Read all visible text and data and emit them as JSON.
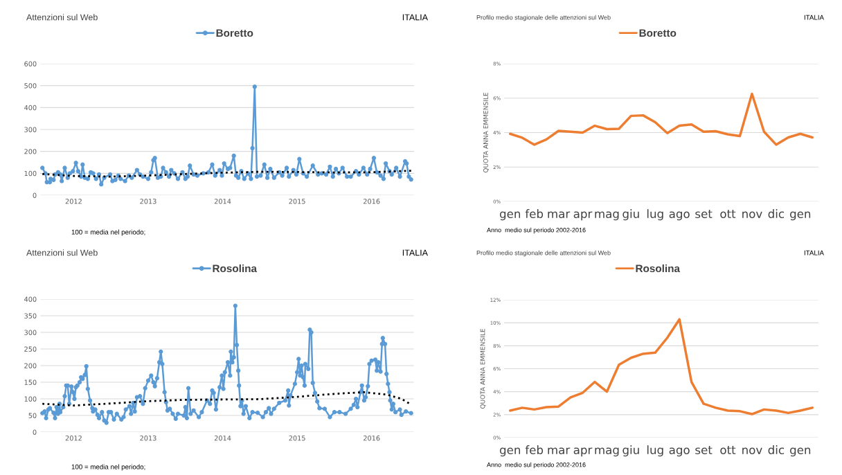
{
  "chart_data": [
    {
      "type": "line",
      "title": "Attenzioni sul Web",
      "annotations": [
        "ITALIA",
        "100 = media nel periodo;"
      ],
      "xlim": [
        2011.55,
        2016.57
      ],
      "xticks": [
        2012,
        2013,
        2014,
        2015,
        2016
      ],
      "ylim": [
        0,
        600
      ],
      "yticks": [
        0,
        100,
        200,
        300,
        400,
        500,
        600
      ],
      "grid": "y",
      "legend": "top",
      "series": [
        {
          "name": "Boretto",
          "color": "#5b9bd5",
          "marker": "circle",
          "line_style": "solid",
          "x": [
            2011.58,
            2011.62,
            2011.64,
            2011.68,
            2011.69,
            2011.73,
            2011.75,
            2011.79,
            2011.82,
            2011.84,
            2011.88,
            2011.92,
            2011.95,
            2011.99,
            2012.03,
            2012.06,
            2012.1,
            2012.12,
            2012.15,
            2012.19,
            2012.23,
            2012.26,
            2012.3,
            2012.34,
            2012.37,
            2012.41,
            2012.49,
            2012.52,
            2012.56,
            2012.6,
            2012.63,
            2012.69,
            2012.74,
            2012.78,
            2012.85,
            2012.89,
            2012.93,
            2013.0,
            2013.04,
            2013.07,
            2013.09,
            2013.13,
            2013.17,
            2013.2,
            2013.24,
            2013.28,
            2013.31,
            2013.35,
            2013.4,
            2013.46,
            2013.5,
            2013.53,
            2013.56,
            2013.61,
            2013.66,
            2013.74,
            2013.81,
            2013.86,
            2013.9,
            2013.96,
            2013.99,
            2014.02,
            2014.07,
            2014.1,
            2014.15,
            2014.18,
            2014.21,
            2014.25,
            2014.29,
            2014.34,
            2014.38,
            2014.4,
            2014.43,
            2014.46,
            2014.51,
            2014.56,
            2014.6,
            2014.64,
            2014.69,
            2014.76,
            2014.8,
            2014.86,
            2014.89,
            2014.95,
            2014.99,
            2015.03,
            2015.08,
            2015.13,
            2015.21,
            2015.28,
            2015.33,
            2015.39,
            2015.44,
            2015.48,
            2015.52,
            2015.56,
            2015.61,
            2015.67,
            2015.72,
            2015.79,
            2015.83,
            2015.89,
            2015.94,
            2015.98,
            2016.03,
            2016.07,
            2016.12,
            2016.16,
            2016.19,
            2016.24,
            2016.27,
            2016.33,
            2016.38,
            2016.45,
            2016.47,
            2016.5,
            2016.53
          ],
          "values": [
            125,
            100,
            60,
            60,
            75,
            70,
            95,
            105,
            95,
            65,
            125,
            80,
            100,
            110,
            148,
            110,
            85,
            140,
            80,
            75,
            105,
            100,
            75,
            95,
            50,
            80,
            95,
            65,
            70,
            90,
            75,
            65,
            90,
            80,
            115,
            95,
            85,
            75,
            105,
            160,
            170,
            80,
            85,
            125,
            105,
            85,
            115,
            100,
            75,
            105,
            75,
            85,
            135,
            95,
            90,
            100,
            105,
            140,
            90,
            115,
            90,
            145,
            120,
            125,
            180,
            90,
            80,
            110,
            75,
            100,
            75,
            215,
            495,
            85,
            90,
            140,
            80,
            120,
            80,
            105,
            90,
            125,
            85,
            115,
            95,
            165,
            100,
            85,
            135,
            95,
            100,
            95,
            130,
            85,
            120,
            100,
            125,
            85,
            85,
            110,
            95,
            125,
            95,
            120,
            170,
            105,
            90,
            75,
            145,
            110,
            95,
            125,
            85,
            155,
            145,
            85,
            72
          ]
        },
        {
          "type": "line",
          "color": "#000000",
          "marker": "none",
          "line_style": "dotted",
          "x": [
            2011.58,
            2012.0,
            2012.5,
            2013.0,
            2013.5,
            2014.0,
            2014.5,
            2015.0,
            2015.5,
            2016.0,
            2016.53
          ],
          "values": [
            97,
            88,
            85,
            90,
            97,
            103,
            107,
            106,
            104,
            105,
            112
          ]
        }
      ]
    },
    {
      "type": "line",
      "title": "Profilo medio stagionale delle attenzioni sul Web",
      "ylabel": "QUOTA ANNA EMMENSILE",
      "annotations": [
        "ITALIA",
        "Anno  medio sul periodo 2002-2016"
      ],
      "ylim": [
        0,
        8
      ],
      "yticks": [
        {
          "value": 0,
          "label": "0%"
        },
        {
          "value": 2,
          "label": "2%"
        },
        {
          "value": 4,
          "label": "4%"
        },
        {
          "value": 6,
          "label": "6%"
        },
        {
          "value": 8,
          "label": "8%"
        }
      ],
      "grid": "y",
      "legend": "top",
      "categories": [
        "gen",
        null,
        "feb",
        null,
        "mar",
        null,
        "apr",
        null,
        "mag",
        null,
        "giu",
        null,
        "lug",
        null,
        "ago",
        null,
        "set",
        null,
        "ott",
        null,
        "nov",
        null,
        "dic",
        null,
        "gen",
        null
      ],
      "series": [
        {
          "name": "Boretto",
          "color": "#ed7d31",
          "marker": "none",
          "line_style": "solid",
          "values": [
            3.93,
            3.7,
            3.3,
            3.6,
            4.1,
            4.05,
            4.0,
            4.4,
            4.2,
            4.22,
            4.97,
            5.0,
            4.6,
            3.97,
            4.4,
            4.47,
            4.05,
            4.08,
            3.9,
            3.8,
            6.25,
            4.05,
            3.3,
            3.72,
            3.93,
            3.72
          ]
        }
      ]
    },
    {
      "type": "line",
      "title": "Attenzioni sul Web",
      "annotations": [
        "ITALIA",
        "100 = media nel periodo;"
      ],
      "xlim": [
        2011.55,
        2016.57
      ],
      "xticks": [
        2012,
        2013,
        2014,
        2015,
        2016
      ],
      "ylim": [
        0,
        400
      ],
      "yticks": [
        0,
        50,
        100,
        150,
        200,
        250,
        300,
        350,
        400
      ],
      "grid": "y",
      "legend": "top",
      "series": [
        {
          "name": "Rosolina",
          "color": "#5b9bd5",
          "marker": "circle",
          "line_style": "solid",
          "x": [
            2011.58,
            2011.61,
            2011.63,
            2011.66,
            2011.68,
            2011.73,
            2011.75,
            2011.77,
            2011.79,
            2011.81,
            2011.82,
            2011.86,
            2011.88,
            2011.9,
            2011.92,
            2011.94,
            2011.97,
            2011.99,
            2012.01,
            2012.03,
            2012.05,
            2012.08,
            2012.1,
            2012.12,
            2012.15,
            2012.17,
            2012.19,
            2012.22,
            2012.25,
            2012.26,
            2012.29,
            2012.32,
            2012.34,
            2012.38,
            2012.41,
            2012.44,
            2012.47,
            2012.5,
            2012.54,
            2012.58,
            2012.64,
            2012.67,
            2012.7,
            2012.75,
            2012.77,
            2012.8,
            2012.82,
            2012.85,
            2012.89,
            2012.93,
            2012.96,
            2013.0,
            2013.04,
            2013.07,
            2013.09,
            2013.12,
            2013.15,
            2013.17,
            2013.19,
            2013.22,
            2013.24,
            2013.26,
            2013.29,
            2013.33,
            2013.37,
            2013.4,
            2013.48,
            2013.5,
            2013.52,
            2013.54,
            2013.57,
            2013.61,
            2013.68,
            2013.72,
            2013.79,
            2013.83,
            2013.86,
            2013.88,
            2013.91,
            2013.96,
            2013.99,
            2014.01,
            2014.03,
            2014.07,
            2014.1,
            2014.11,
            2014.13,
            2014.15,
            2014.17,
            2014.19,
            2014.21,
            2014.22,
            2014.24,
            2014.26,
            2014.28,
            2014.31,
            2014.36,
            2014.4,
            2014.47,
            2014.54,
            2014.58,
            2014.62,
            2014.65,
            2014.69,
            2014.76,
            2014.84,
            2014.88,
            2014.89,
            2014.91,
            2014.97,
            2015.0,
            2015.02,
            2015.04,
            2015.06,
            2015.08,
            2015.1,
            2015.11,
            2015.15,
            2015.17,
            2015.19,
            2015.21,
            2015.24,
            2015.27,
            2015.3,
            2015.37,
            2015.44,
            2015.5,
            2015.57,
            2015.65,
            2015.72,
            2015.76,
            2015.79,
            2015.81,
            2015.85,
            2015.87,
            2015.9,
            2015.92,
            2015.95,
            2015.97,
            2016.0,
            2016.05,
            2016.07,
            2016.09,
            2016.12,
            2016.14,
            2016.15,
            2016.18,
            2016.2,
            2016.22,
            2016.24,
            2016.25,
            2016.27,
            2016.29,
            2016.32,
            2016.38,
            2016.4,
            2016.46,
            2016.53
          ],
          "values": [
            57,
            62,
            42,
            68,
            72,
            58,
            42,
            75,
            55,
            85,
            60,
            75,
            108,
            140,
            140,
            85,
            137,
            120,
            100,
            135,
            140,
            150,
            165,
            160,
            172,
            198,
            130,
            95,
            72,
            62,
            68,
            52,
            42,
            60,
            35,
            28,
            60,
            60,
            38,
            55,
            38,
            45,
            68,
            78,
            55,
            88,
            62,
            105,
            108,
            85,
            132,
            155,
            170,
            150,
            138,
            162,
            210,
            242,
            205,
            120,
            90,
            65,
            70,
            55,
            40,
            55,
            50,
            75,
            42,
            132,
            55,
            65,
            45,
            60,
            95,
            85,
            125,
            118,
            68,
            135,
            170,
            130,
            180,
            210,
            170,
            242,
            210,
            225,
            380,
            262,
            185,
            140,
            78,
            95,
            55,
            78,
            42,
            60,
            58,
            45,
            60,
            72,
            55,
            70,
            88,
            95,
            125,
            80,
            110,
            145,
            180,
            220,
            170,
            200,
            165,
            140,
            205,
            190,
            308,
            300,
            148,
            118,
            92,
            72,
            70,
            45,
            60,
            60,
            55,
            70,
            82,
            100,
            75,
            120,
            140,
            95,
            105,
            138,
            205,
            215,
            218,
            185,
            210,
            182,
            265,
            283,
            265,
            175,
            145,
            120,
            95,
            68,
            85,
            60,
            68,
            52,
            62,
            57
          ]
        },
        {
          "type": "line",
          "color": "#000000",
          "marker": "none",
          "line_style": "dotted",
          "x": [
            2011.58,
            2012.0,
            2012.5,
            2013.0,
            2013.5,
            2014.0,
            2014.5,
            2015.0,
            2015.5,
            2015.9,
            2016.2,
            2016.4,
            2016.53
          ],
          "values": [
            85,
            80,
            86,
            93,
            97,
            98,
            99,
            106,
            115,
            120,
            113,
            100,
            83
          ]
        }
      ]
    },
    {
      "type": "line",
      "title": "Profilo medio stagionale delle attenzioni sul Web",
      "ylabel": "QUOTA ANNA EMMENSILE",
      "annotations": [
        "ITALIA",
        "Anno  medio sul periodo 2002-2016"
      ],
      "ylim": [
        0,
        12
      ],
      "yticks": [
        {
          "value": 0,
          "label": "0%"
        },
        {
          "value": 2,
          "label": "2%"
        },
        {
          "value": 4,
          "label": "4%"
        },
        {
          "value": 6,
          "label": "6%"
        },
        {
          "value": 8,
          "label": "8%"
        },
        {
          "value": 10,
          "label": "10%"
        },
        {
          "value": 12,
          "label": "12%"
        }
      ],
      "grid": "y",
      "legend": "top",
      "categories": [
        "gen",
        null,
        "feb",
        null,
        "mar",
        null,
        "apr",
        null,
        "mag",
        null,
        "giu",
        null,
        "lug",
        null,
        "ago",
        null,
        "set",
        null,
        "ott",
        null,
        "nov",
        null,
        "dic",
        null,
        "gen",
        null
      ],
      "series": [
        {
          "name": "Rosolina",
          "color": "#ed7d31",
          "marker": "none",
          "line_style": "solid",
          "values": [
            2.35,
            2.6,
            2.45,
            2.65,
            2.7,
            3.5,
            3.9,
            4.85,
            4.0,
            6.35,
            6.95,
            7.3,
            7.4,
            8.7,
            10.3,
            4.85,
            2.95,
            2.6,
            2.35,
            2.3,
            2.05,
            2.45,
            2.35,
            2.15,
            2.35,
            2.6
          ]
        }
      ]
    }
  ]
}
